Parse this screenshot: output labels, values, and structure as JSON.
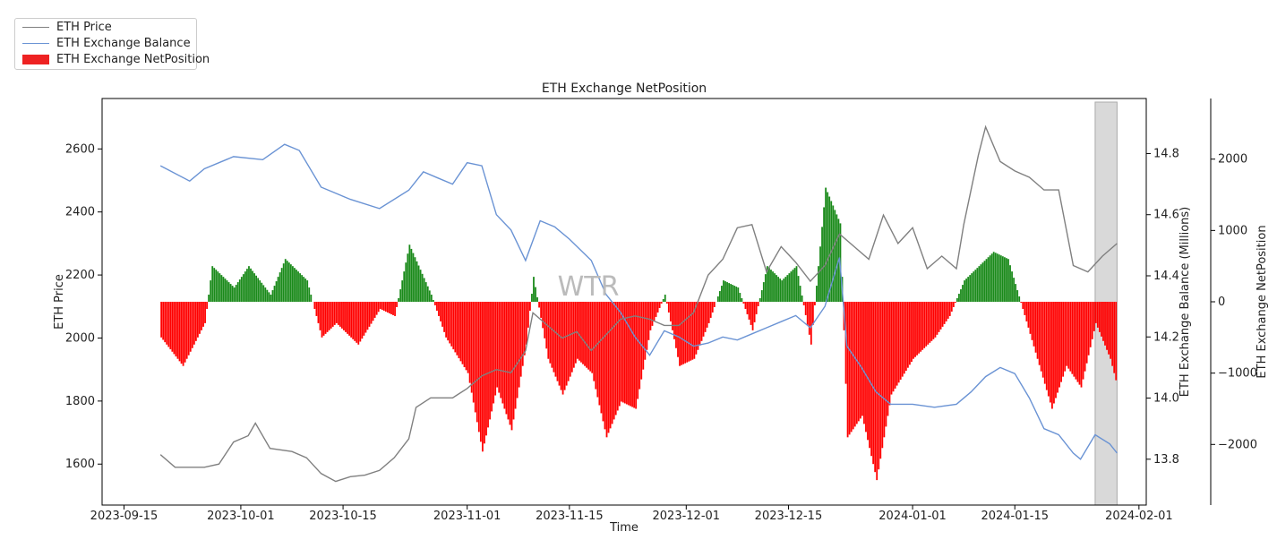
{
  "chart_data": {
    "type": "line",
    "title": "ETH Exchange NetPosition",
    "xlabel": "Time",
    "ylabel_left": "ETH Price",
    "ylabel_right1": "ETH Exchange Balance (Millions)",
    "ylabel_right2": "ETH Exchange NetPosition",
    "watermark": "WTR",
    "x_ticks": [
      "2023-09-15",
      "2023-10-01",
      "2023-10-15",
      "2023-11-01",
      "2023-11-15",
      "2023-12-01",
      "2023-12-15",
      "2024-01-01",
      "2024-01-15",
      "2024-02-01"
    ],
    "x_range": [
      "2023-09-12",
      "2024-02-02"
    ],
    "y_left_range": [
      1470,
      2760
    ],
    "y_left_ticks": [
      1600,
      1800,
      2000,
      2200,
      2400,
      2600
    ],
    "y_right1_range": [
      13.65,
      14.98
    ],
    "y_right1_ticks": [
      13.8,
      14.0,
      14.2,
      14.4,
      14.6,
      14.8
    ],
    "y_right2_range": [
      -2850,
      2850
    ],
    "y_right2_ticks": [
      -2000,
      -1000,
      0,
      1000,
      2000
    ],
    "highlight_range": [
      "2024-01-26",
      "2024-01-29"
    ],
    "colors": {
      "price": "#808080",
      "balance": "#6a93d4",
      "net_pos": "#ff0000",
      "net_neg": "#ff0000",
      "net_posbar": "#1a8a1a",
      "highlight": "#d9d9d9"
    },
    "legend_position": "top-left",
    "legend": [
      {
        "label": "ETH Price",
        "kind": "line",
        "color": "#808080"
      },
      {
        "label": "ETH Exchange Balance",
        "kind": "line",
        "color": "#6a93d4"
      },
      {
        "label": "ETH Exchange NetPosition",
        "kind": "bar",
        "color": "#ee2222"
      }
    ],
    "series": [
      {
        "name": "ETH Price",
        "axis": "left",
        "points": [
          [
            "2023-09-20",
            1630
          ],
          [
            "2023-09-22",
            1590
          ],
          [
            "2023-09-26",
            1590
          ],
          [
            "2023-09-28",
            1600
          ],
          [
            "2023-09-30",
            1670
          ],
          [
            "2023-10-02",
            1690
          ],
          [
            "2023-10-03",
            1730
          ],
          [
            "2023-10-05",
            1650
          ],
          [
            "2023-10-08",
            1640
          ],
          [
            "2023-10-10",
            1620
          ],
          [
            "2023-10-12",
            1570
          ],
          [
            "2023-10-14",
            1545
          ],
          [
            "2023-10-16",
            1560
          ],
          [
            "2023-10-18",
            1565
          ],
          [
            "2023-10-20",
            1580
          ],
          [
            "2023-10-22",
            1620
          ],
          [
            "2023-10-24",
            1680
          ],
          [
            "2023-10-25",
            1780
          ],
          [
            "2023-10-27",
            1810
          ],
          [
            "2023-10-30",
            1810
          ],
          [
            "2023-11-01",
            1840
          ],
          [
            "2023-11-03",
            1880
          ],
          [
            "2023-11-05",
            1900
          ],
          [
            "2023-11-07",
            1890
          ],
          [
            "2023-11-09",
            1960
          ],
          [
            "2023-11-10",
            2080
          ],
          [
            "2023-11-12",
            2040
          ],
          [
            "2023-11-14",
            2000
          ],
          [
            "2023-11-16",
            2020
          ],
          [
            "2023-11-18",
            1960
          ],
          [
            "2023-11-20",
            2010
          ],
          [
            "2023-11-22",
            2060
          ],
          [
            "2023-11-24",
            2070
          ],
          [
            "2023-11-26",
            2060
          ],
          [
            "2023-11-28",
            2040
          ],
          [
            "2023-11-30",
            2040
          ],
          [
            "2023-12-02",
            2080
          ],
          [
            "2023-12-04",
            2200
          ],
          [
            "2023-12-06",
            2250
          ],
          [
            "2023-12-08",
            2350
          ],
          [
            "2023-12-10",
            2360
          ],
          [
            "2023-12-12",
            2210
          ],
          [
            "2023-12-14",
            2290
          ],
          [
            "2023-12-16",
            2240
          ],
          [
            "2023-12-18",
            2180
          ],
          [
            "2023-12-20",
            2230
          ],
          [
            "2023-12-22",
            2330
          ],
          [
            "2023-12-24",
            2290
          ],
          [
            "2023-12-26",
            2250
          ],
          [
            "2023-12-28",
            2390
          ],
          [
            "2023-12-30",
            2300
          ],
          [
            "2024-01-01",
            2350
          ],
          [
            "2024-01-03",
            2220
          ],
          [
            "2024-01-05",
            2260
          ],
          [
            "2024-01-07",
            2220
          ],
          [
            "2024-01-08",
            2360
          ],
          [
            "2024-01-10",
            2580
          ],
          [
            "2024-01-11",
            2670
          ],
          [
            "2024-01-13",
            2560
          ],
          [
            "2024-01-15",
            2530
          ],
          [
            "2024-01-17",
            2510
          ],
          [
            "2024-01-19",
            2470
          ],
          [
            "2024-01-21",
            2470
          ],
          [
            "2024-01-23",
            2230
          ],
          [
            "2024-01-25",
            2210
          ],
          [
            "2024-01-27",
            2260
          ],
          [
            "2024-01-29",
            2300
          ]
        ]
      },
      {
        "name": "ETH Exchange Balance",
        "axis": "right1",
        "points": [
          [
            "2023-09-20",
            14.76
          ],
          [
            "2023-09-24",
            14.71
          ],
          [
            "2023-09-26",
            14.75
          ],
          [
            "2023-09-30",
            14.79
          ],
          [
            "2023-10-04",
            14.78
          ],
          [
            "2023-10-07",
            14.83
          ],
          [
            "2023-10-09",
            14.81
          ],
          [
            "2023-10-12",
            14.69
          ],
          [
            "2023-10-16",
            14.65
          ],
          [
            "2023-10-20",
            14.62
          ],
          [
            "2023-10-24",
            14.68
          ],
          [
            "2023-10-26",
            14.74
          ],
          [
            "2023-10-28",
            14.72
          ],
          [
            "2023-10-30",
            14.7
          ],
          [
            "2023-11-01",
            14.77
          ],
          [
            "2023-11-03",
            14.76
          ],
          [
            "2023-11-05",
            14.6
          ],
          [
            "2023-11-07",
            14.55
          ],
          [
            "2023-11-09",
            14.45
          ],
          [
            "2023-11-11",
            14.58
          ],
          [
            "2023-11-13",
            14.56
          ],
          [
            "2023-11-15",
            14.52
          ],
          [
            "2023-11-18",
            14.45
          ],
          [
            "2023-11-20",
            14.34
          ],
          [
            "2023-11-22",
            14.28
          ],
          [
            "2023-11-24",
            14.2
          ],
          [
            "2023-11-26",
            14.14
          ],
          [
            "2023-11-28",
            14.22
          ],
          [
            "2023-11-30",
            14.2
          ],
          [
            "2023-12-02",
            14.17
          ],
          [
            "2023-12-04",
            14.18
          ],
          [
            "2023-12-06",
            14.2
          ],
          [
            "2023-12-08",
            14.19
          ],
          [
            "2023-12-10",
            14.21
          ],
          [
            "2023-12-12",
            14.23
          ],
          [
            "2023-12-14",
            14.25
          ],
          [
            "2023-12-16",
            14.27
          ],
          [
            "2023-12-18",
            14.23
          ],
          [
            "2023-12-20",
            14.3
          ],
          [
            "2023-12-22",
            14.46
          ],
          [
            "2023-12-23",
            14.17
          ],
          [
            "2023-12-25",
            14.1
          ],
          [
            "2023-12-27",
            14.02
          ],
          [
            "2023-12-29",
            13.98
          ],
          [
            "2024-01-01",
            13.98
          ],
          [
            "2024-01-04",
            13.97
          ],
          [
            "2024-01-07",
            13.98
          ],
          [
            "2024-01-09",
            14.02
          ],
          [
            "2024-01-11",
            14.07
          ],
          [
            "2024-01-13",
            14.1
          ],
          [
            "2024-01-15",
            14.08
          ],
          [
            "2024-01-17",
            14.0
          ],
          [
            "2024-01-19",
            13.9
          ],
          [
            "2024-01-21",
            13.88
          ],
          [
            "2024-01-23",
            13.82
          ],
          [
            "2024-01-24",
            13.8
          ],
          [
            "2024-01-26",
            13.88
          ],
          [
            "2024-01-28",
            13.85
          ],
          [
            "2024-01-29",
            13.82
          ]
        ]
      },
      {
        "name": "ETH Exchange NetPosition",
        "axis": "right2",
        "kind": "bar",
        "points": [
          [
            "2023-09-20",
            -500
          ],
          [
            "2023-09-23",
            -900
          ],
          [
            "2023-09-26",
            -300
          ],
          [
            "2023-09-27",
            500
          ],
          [
            "2023-09-30",
            200
          ],
          [
            "2023-10-02",
            500
          ],
          [
            "2023-10-05",
            100
          ],
          [
            "2023-10-07",
            600
          ],
          [
            "2023-10-10",
            300
          ],
          [
            "2023-10-12",
            -500
          ],
          [
            "2023-10-14",
            -300
          ],
          [
            "2023-10-17",
            -600
          ],
          [
            "2023-10-20",
            -100
          ],
          [
            "2023-10-22",
            -200
          ],
          [
            "2023-10-24",
            800
          ],
          [
            "2023-10-27",
            100
          ],
          [
            "2023-10-29",
            -500
          ],
          [
            "2023-11-01",
            -1000
          ],
          [
            "2023-11-03",
            -2100
          ],
          [
            "2023-11-05",
            -1200
          ],
          [
            "2023-11-07",
            -1800
          ],
          [
            "2023-11-09",
            -600
          ],
          [
            "2023-11-10",
            350
          ],
          [
            "2023-11-12",
            -800
          ],
          [
            "2023-11-14",
            -1300
          ],
          [
            "2023-11-16",
            -800
          ],
          [
            "2023-11-18",
            -1000
          ],
          [
            "2023-11-20",
            -1900
          ],
          [
            "2023-11-22",
            -1400
          ],
          [
            "2023-11-24",
            -1500
          ],
          [
            "2023-11-26",
            -400
          ],
          [
            "2023-11-28",
            100
          ],
          [
            "2023-11-30",
            -900
          ],
          [
            "2023-12-02",
            -800
          ],
          [
            "2023-12-04",
            -300
          ],
          [
            "2023-12-06",
            300
          ],
          [
            "2023-12-08",
            200
          ],
          [
            "2023-12-10",
            -400
          ],
          [
            "2023-12-12",
            500
          ],
          [
            "2023-12-14",
            300
          ],
          [
            "2023-12-16",
            500
          ],
          [
            "2023-12-18",
            -600
          ],
          [
            "2023-12-20",
            1600
          ],
          [
            "2023-12-22",
            1100
          ],
          [
            "2023-12-23",
            -1900
          ],
          [
            "2023-12-25",
            -1600
          ],
          [
            "2023-12-27",
            -2500
          ],
          [
            "2023-12-29",
            -1300
          ],
          [
            "2024-01-01",
            -800
          ],
          [
            "2024-01-04",
            -500
          ],
          [
            "2024-01-06",
            -200
          ],
          [
            "2024-01-08",
            300
          ],
          [
            "2024-01-10",
            500
          ],
          [
            "2024-01-12",
            700
          ],
          [
            "2024-01-14",
            600
          ],
          [
            "2024-01-16",
            -100
          ],
          [
            "2024-01-18",
            -800
          ],
          [
            "2024-01-20",
            -1500
          ],
          [
            "2024-01-22",
            -900
          ],
          [
            "2024-01-24",
            -1200
          ],
          [
            "2024-01-26",
            -300
          ],
          [
            "2024-01-28",
            -800
          ],
          [
            "2024-01-29",
            -1200
          ]
        ]
      }
    ]
  }
}
